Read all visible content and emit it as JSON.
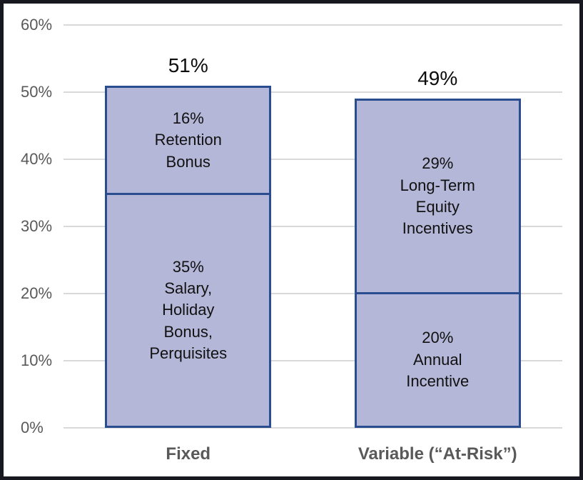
{
  "frame": {
    "background": "#ffffff",
    "border_color": "#181820"
  },
  "chart_data": {
    "type": "bar",
    "stacked": true,
    "title": "",
    "xlabel": "",
    "ylabel": "",
    "categories": [
      "Fixed",
      "Variable (“At-Risk”)"
    ],
    "ylim": [
      0,
      60
    ],
    "yticks": [
      0,
      10,
      20,
      30,
      40,
      50,
      60
    ],
    "ytick_suffix": "%",
    "grid": true,
    "legend": "none",
    "colors": {
      "bar_fill": "#b4b7d7",
      "bar_border": "#2a4d8f",
      "grid_color": "#d9d9d9",
      "tick_text": "#595959",
      "label_text": "#111111"
    },
    "bars": [
      {
        "category": "Fixed",
        "total": 51,
        "total_label": "51%",
        "segments": [
          {
            "value": 35,
            "label_lines": [
              "35%",
              "Salary,",
              "Holiday",
              "Bonus,",
              "Perquisites"
            ]
          },
          {
            "value": 16,
            "label_lines": [
              "16%",
              "Retention",
              "Bonus"
            ]
          }
        ]
      },
      {
        "category": "Variable (“At-Risk”)",
        "total": 49,
        "total_label": "49%",
        "segments": [
          {
            "value": 20,
            "label_lines": [
              "20%",
              "Annual",
              "Incentive"
            ]
          },
          {
            "value": 29,
            "label_lines": [
              "29%",
              "Long-Term",
              "Equity",
              "Incentives"
            ]
          }
        ]
      }
    ]
  }
}
